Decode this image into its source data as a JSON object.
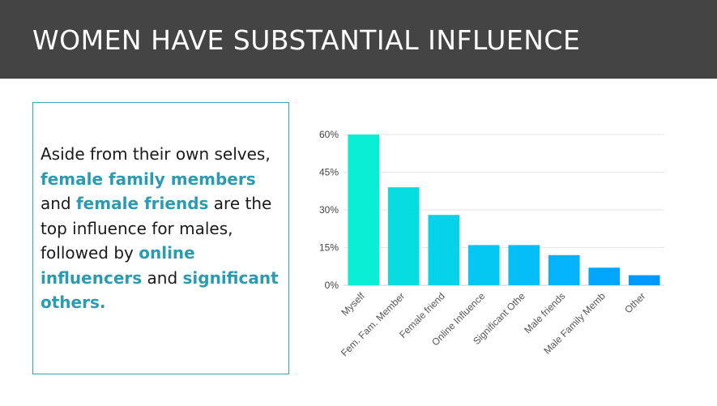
{
  "header": {
    "title": "WOMEN HAVE SUBSTANTIAL INFLUENCE"
  },
  "textbox": {
    "p1": "Aside from their own selves, ",
    "h1": "female family members",
    "p2": " and ",
    "h2": "female friends",
    "p3": " are the top influence for males, followed by ",
    "h3": "online influencers",
    "p4": " and ",
    "h4": "significant others."
  },
  "colors": {
    "header_bg": "#444444",
    "highlight": "#2a9bb0",
    "box_border": "#3aa3b3",
    "bars": [
      "#08efd6",
      "#07dce0",
      "#06d2ea",
      "#05c8f2",
      "#04bff7",
      "#03b3fb",
      "#02a6fd",
      "#0199fe"
    ]
  },
  "chart_data": {
    "type": "bar",
    "categories": [
      "Myself",
      "Fem. Fam. Member",
      "Female friend",
      "Online Influence",
      "Significant Othe",
      "Male friends",
      "Male Family Memb",
      "Other"
    ],
    "values": [
      60,
      39,
      28,
      16,
      16,
      12,
      7,
      4
    ],
    "ylim": [
      0,
      60
    ],
    "yticks": [
      0,
      15,
      30,
      45,
      60
    ],
    "ytick_labels": [
      "0%",
      "15%",
      "30%",
      "45%",
      "60%"
    ],
    "grid": true
  }
}
